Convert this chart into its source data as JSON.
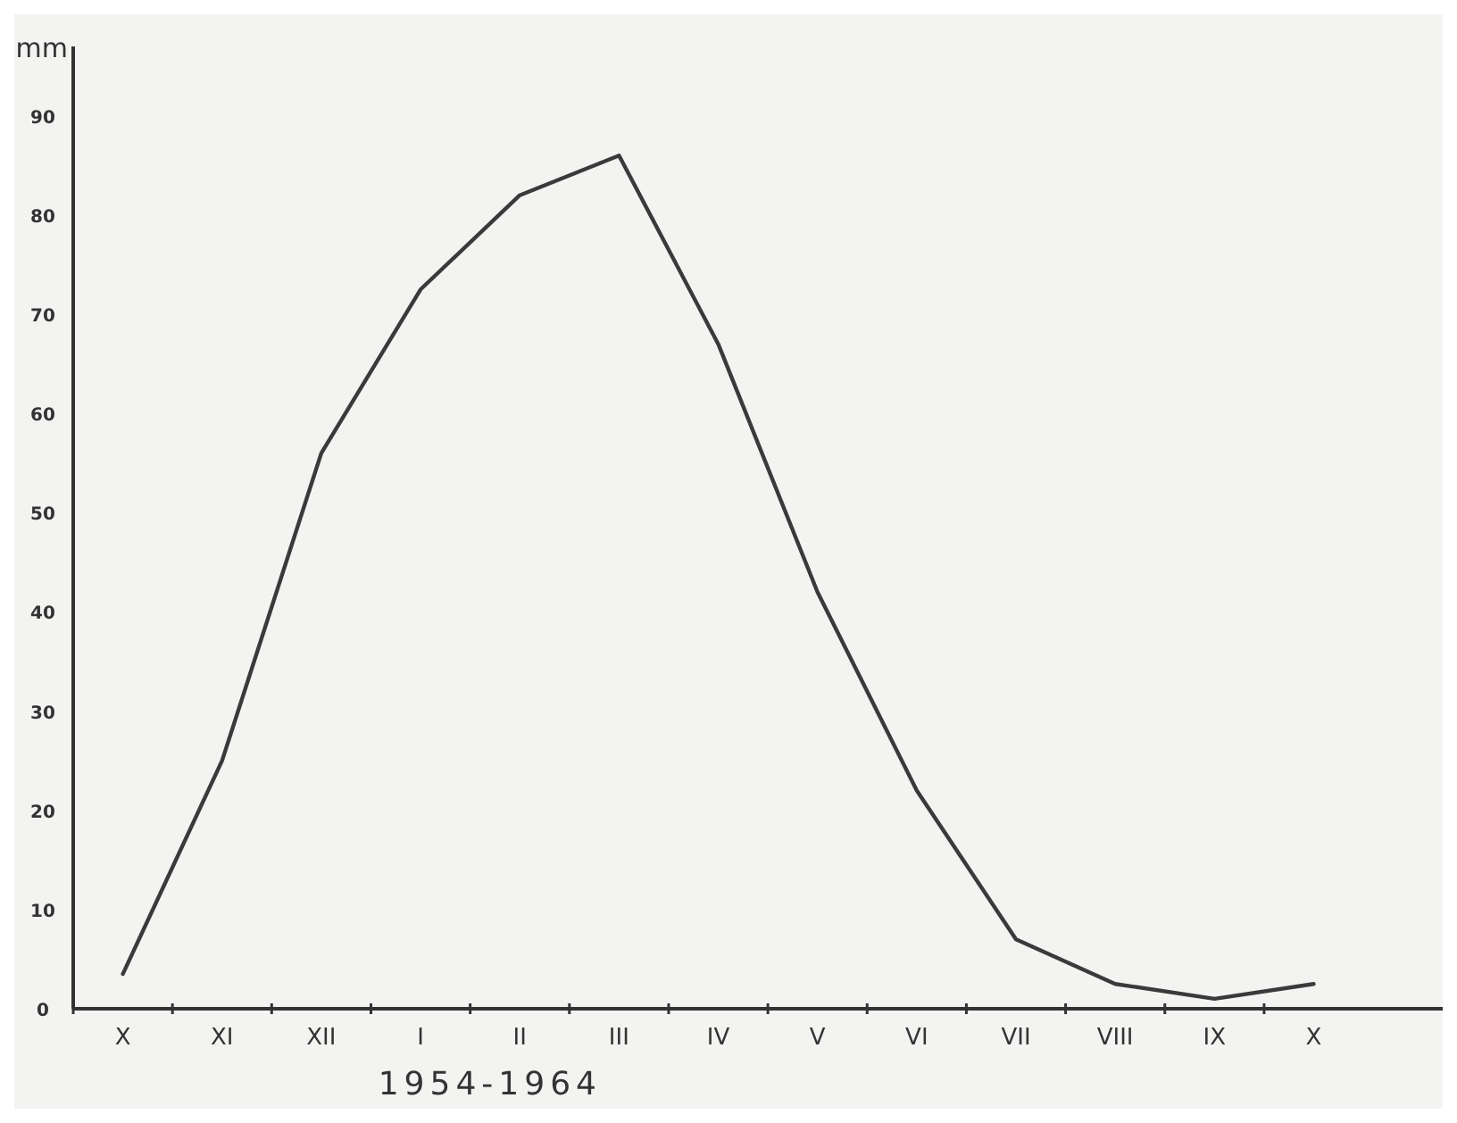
{
  "chart_data": {
    "type": "line",
    "xlabel": "1954-1964",
    "ylabel": "mm",
    "categories": [
      "X",
      "XI",
      "XII",
      "I",
      "II",
      "III",
      "IV",
      "V",
      "VI",
      "VII",
      "VIII",
      "IX",
      "X"
    ],
    "series": [
      {
        "color": "#3a3a3a",
        "values": [
          3.5,
          25,
          56,
          72.5,
          82,
          86,
          67,
          42,
          22,
          7,
          2.5,
          1,
          2.5
        ]
      }
    ],
    "ylim": [
      0,
      97
    ],
    "yticks": [
      0,
      10,
      20,
      30,
      40,
      50,
      60,
      70,
      80,
      90
    ],
    "grid": false,
    "marker": "none",
    "line_style": "solid"
  }
}
